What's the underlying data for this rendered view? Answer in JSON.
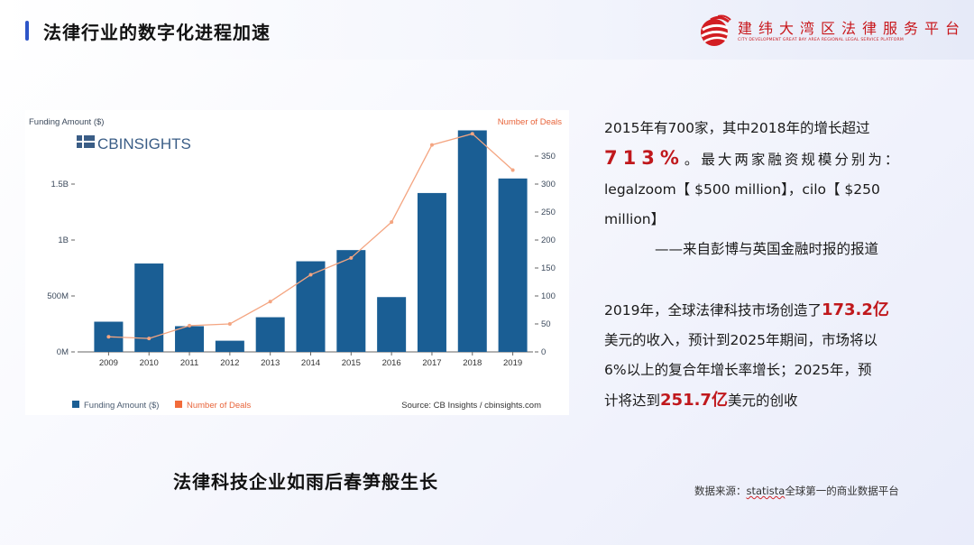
{
  "header": {
    "title": "法律行业的数字化进程加速",
    "logo_name": "建纬大湾区法律服务平台",
    "logo_subtitle": "CITY DEVELOPMENT GREAT BAY AREA REGIONAL LEGAL SERVICE PLATFORM"
  },
  "chart_logo": "CBINSIGHTS",
  "chart_data": {
    "type": "bar",
    "categories": [
      "2009",
      "2010",
      "2011",
      "2012",
      "2013",
      "2014",
      "2015",
      "2016",
      "2017",
      "2018",
      "2019"
    ],
    "series": [
      {
        "name": "Funding Amount ($)",
        "type": "bar",
        "axis": "left",
        "values": [
          0.27,
          0.79,
          0.23,
          0.1,
          0.31,
          0.81,
          0.91,
          0.49,
          1.42,
          1.98,
          1.55
        ]
      },
      {
        "name": "Number of Deals",
        "type": "line",
        "axis": "right",
        "values": [
          27,
          24,
          47,
          50,
          90,
          138,
          168,
          232,
          370,
          390,
          325
        ]
      }
    ],
    "ylabel": "Funding Amount ($)",
    "y2label": "Number of Deals",
    "ylim": [
      0,
      2.0
    ],
    "yticks": [
      {
        "value": 0,
        "label": "0M"
      },
      {
        "value": 0.5,
        "label": "500M"
      },
      {
        "value": 1.0,
        "label": "1B"
      },
      {
        "value": 1.5,
        "label": "1.5B"
      }
    ],
    "y2lim": [
      0,
      400
    ],
    "y2ticks": [
      0,
      50,
      100,
      150,
      200,
      250,
      300,
      350
    ],
    "legend": [
      "Funding Amount ($)",
      "Number of Deals"
    ],
    "legend_position": "bottom-left",
    "source": "Source: CB Insights / cbinsights.com",
    "grid": false,
    "colors": {
      "bars": "#1a5e94",
      "line": "#f4a581",
      "legend_line": "#f26b3a",
      "right_axis_title": "#e8643a",
      "text": "#3c4a5c"
    }
  },
  "caption": "法律科技企业如雨后春笋般生长",
  "paragraph1": {
    "line1": "2015年有700家，其中2018年的增长超过",
    "highlight": "713%",
    "after_highlight": "。最大两家融资规模分别为：",
    "line3": "legalzoom【 $500 million】，cilo【 $250",
    "line4": "million】",
    "attribution": "——来自彭博与英国金融时报的报道"
  },
  "paragraph2": {
    "prefix": "2019年，全球法律科技市场创造了",
    "value1": "173.2亿",
    "line2": "美元的收入，预计到2025年期间，市场将以",
    "line3": "6%以上的复合年增长率增长；2025年，预",
    "line4_prefix": "计将达到",
    "value2": "251.7亿",
    "line4_suffix": "美元的创收"
  },
  "source_note": {
    "prefix": "数据来源：",
    "site": "statista",
    "suffix": "全球第一的商业数据平台"
  },
  "colors": {
    "accent_blue": "#2d55c8",
    "brand_red": "#c8171b",
    "highlight_red": "#c0181c"
  }
}
